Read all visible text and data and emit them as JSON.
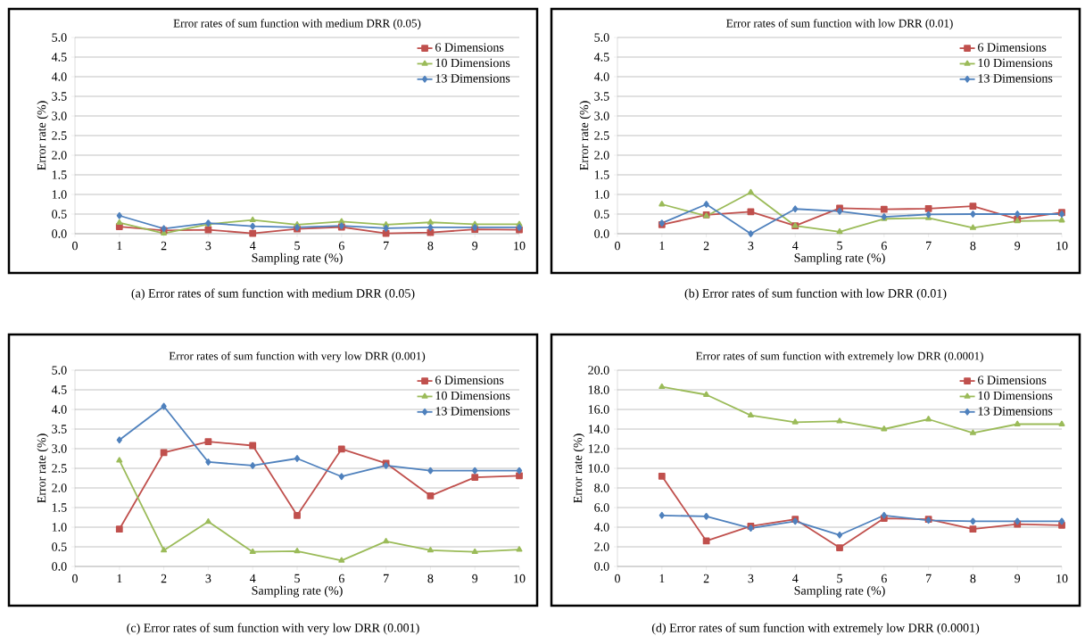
{
  "chart_data": [
    {
      "type": "line",
      "title": "Error rates of sum function with medium DRR (0.05)",
      "xlabel": "Sampling rate (%)",
      "ylabel": "Error rate (%)",
      "annotations": [
        "(a) Error rates of sum function with medium DRR (0.05)"
      ],
      "x": [
        1,
        2,
        3,
        4,
        5,
        6,
        7,
        8,
        9,
        10
      ],
      "xlim": [
        0,
        10
      ],
      "xticks": [
        0,
        1,
        2,
        3,
        4,
        5,
        6,
        7,
        8,
        9,
        10
      ],
      "ylim": [
        0,
        5
      ],
      "yticks": [
        {
          "value": 0,
          "label": "0.0"
        },
        0.5,
        {
          "value": 1,
          "label": "1.0"
        },
        1.5,
        {
          "value": 2,
          "label": "2.0"
        },
        2.5,
        {
          "value": 3,
          "label": "3.0"
        },
        3.5,
        {
          "value": 4,
          "label": "4.0"
        },
        4.5,
        {
          "value": 5,
          "label": "5.0"
        }
      ],
      "grid": "y",
      "legend": "top right",
      "line_style": "solid",
      "series": [
        {
          "name": "6 Dimensions",
          "color": "#c0504d",
          "marker": "square",
          "values": [
            0.18,
            0.08,
            0.1,
            0.01,
            0.12,
            0.17,
            0.01,
            0.03,
            0.11,
            0.1
          ]
        },
        {
          "name": "10 Dimensions",
          "color": "#9bbb59",
          "marker": "triangle",
          "values": [
            0.28,
            0.01,
            0.24,
            0.35,
            0.23,
            0.31,
            0.23,
            0.29,
            0.24,
            0.24
          ]
        },
        {
          "name": "13 Dimensions",
          "color": "#4f81bd",
          "marker": "diamond",
          "values": [
            0.46,
            0.13,
            0.27,
            0.19,
            0.16,
            0.2,
            0.14,
            0.16,
            0.16,
            0.16
          ]
        }
      ]
    },
    {
      "type": "line",
      "title": "Error rates of sum function with low DRR (0.01)",
      "xlabel": "Sampling rate (%)",
      "ylabel": "Error rate (%)",
      "annotations": [
        "(b) Error rates of sum function with low DRR (0.01)"
      ],
      "x": [
        1,
        2,
        3,
        4,
        5,
        6,
        7,
        8,
        9,
        10
      ],
      "xlim": [
        0,
        10
      ],
      "xticks": [
        0,
        1,
        2,
        3,
        4,
        5,
        6,
        7,
        8,
        9,
        10
      ],
      "ylim": [
        0,
        5
      ],
      "yticks": [
        {
          "value": 0,
          "label": "0.0"
        },
        0.5,
        {
          "value": 1,
          "label": "1.0"
        },
        1.5,
        {
          "value": 2,
          "label": "2.0"
        },
        2.5,
        {
          "value": 3,
          "label": "3.0"
        },
        3.5,
        {
          "value": 4,
          "label": "4.0"
        },
        4.5,
        {
          "value": 5,
          "label": "5.0"
        }
      ],
      "grid": "y",
      "legend": "top right",
      "line_style": "solid",
      "series": [
        {
          "name": "6 Dimensions",
          "color": "#c0504d",
          "marker": "square",
          "values": [
            0.23,
            0.48,
            0.56,
            0.2,
            0.65,
            0.62,
            0.64,
            0.7,
            0.37,
            0.54
          ]
        },
        {
          "name": "10 Dimensions",
          "color": "#9bbb59",
          "marker": "triangle",
          "values": [
            0.75,
            0.45,
            1.05,
            0.2,
            0.05,
            0.38,
            0.4,
            0.15,
            0.32,
            0.34
          ]
        },
        {
          "name": "13 Dimensions",
          "color": "#4f81bd",
          "marker": "diamond",
          "values": [
            0.27,
            0.75,
            0.0,
            0.63,
            0.57,
            0.43,
            0.49,
            0.5,
            0.5,
            0.5
          ]
        }
      ]
    },
    {
      "type": "line",
      "title": "Error rates of sum function with very low DRR (0.001)",
      "xlabel": "Sampling rate (%)",
      "ylabel": "Error rate (%)",
      "annotations": [
        "(c) Error rates of sum function with very low DRR (0.001)"
      ],
      "x": [
        1,
        2,
        3,
        4,
        5,
        6,
        7,
        8,
        9,
        10
      ],
      "xlim": [
        0,
        10
      ],
      "xticks": [
        0,
        1,
        2,
        3,
        4,
        5,
        6,
        7,
        8,
        9,
        10
      ],
      "ylim": [
        0,
        5
      ],
      "yticks": [
        {
          "value": 0,
          "label": "0.0"
        },
        0.5,
        {
          "value": 1,
          "label": "1.0"
        },
        1.5,
        {
          "value": 2,
          "label": "2.0"
        },
        2.5,
        {
          "value": 3,
          "label": "3.0"
        },
        3.5,
        {
          "value": 4,
          "label": "4.0"
        },
        4.5,
        {
          "value": 5,
          "label": "5.0"
        }
      ],
      "grid": "y",
      "legend": "top right",
      "line_style": "solid",
      "series": [
        {
          "name": "6 Dimensions",
          "color": "#c0504d",
          "marker": "square",
          "values": [
            0.95,
            2.9,
            3.18,
            3.08,
            1.3,
            2.99,
            2.63,
            1.8,
            2.27,
            2.31
          ]
        },
        {
          "name": "10 Dimensions",
          "color": "#9bbb59",
          "marker": "triangle",
          "values": [
            2.7,
            0.41,
            1.14,
            0.37,
            0.39,
            0.15,
            0.64,
            0.41,
            0.37,
            0.43
          ]
        },
        {
          "name": "13 Dimensions",
          "color": "#4f81bd",
          "marker": "diamond",
          "values": [
            3.22,
            4.08,
            2.66,
            2.57,
            2.75,
            2.29,
            2.57,
            2.44,
            2.44,
            2.44
          ]
        }
      ]
    },
    {
      "type": "line",
      "title": "Error rates of sum function with extremely low DRR (0.0001)",
      "xlabel": "Sampling rate (%)",
      "ylabel": "Error rate (%)",
      "annotations": [
        "(d) Error rates of sum function with extremely low DRR (0.0001)"
      ],
      "x": [
        1,
        2,
        3,
        4,
        5,
        6,
        7,
        8,
        9,
        10
      ],
      "xlim": [
        0,
        10
      ],
      "xticks": [
        0,
        1,
        2,
        3,
        4,
        5,
        6,
        7,
        8,
        9,
        10
      ],
      "ylim": [
        0,
        20
      ],
      "yticks": [
        {
          "value": 0,
          "label": "0.0"
        },
        {
          "value": 2,
          "label": "2.0"
        },
        {
          "value": 4,
          "label": "4.0"
        },
        {
          "value": 6,
          "label": "6.0"
        },
        {
          "value": 8,
          "label": "8.0"
        },
        {
          "value": 10,
          "label": "10.0"
        },
        {
          "value": 12,
          "label": "12.0"
        },
        {
          "value": 14,
          "label": "14.0"
        },
        {
          "value": 16,
          "label": "16.0"
        },
        {
          "value": 18,
          "label": "18.0"
        },
        {
          "value": 20,
          "label": "20.0"
        }
      ],
      "grid": "y",
      "legend": "top right",
      "line_style": "solid",
      "series": [
        {
          "name": "6 Dimensions",
          "color": "#c0504d",
          "marker": "square",
          "values": [
            9.2,
            2.6,
            4.1,
            4.8,
            1.9,
            4.9,
            4.8,
            3.8,
            4.3,
            4.2
          ]
        },
        {
          "name": "10 Dimensions",
          "color": "#9bbb59",
          "marker": "triangle",
          "values": [
            18.3,
            17.5,
            15.4,
            14.7,
            14.8,
            14.0,
            15.0,
            13.6,
            14.5,
            14.5
          ]
        },
        {
          "name": "13 Dimensions",
          "color": "#4f81bd",
          "marker": "diamond",
          "values": [
            5.2,
            5.1,
            3.9,
            4.6,
            3.2,
            5.2,
            4.7,
            4.6,
            4.6,
            4.6
          ]
        }
      ]
    }
  ]
}
